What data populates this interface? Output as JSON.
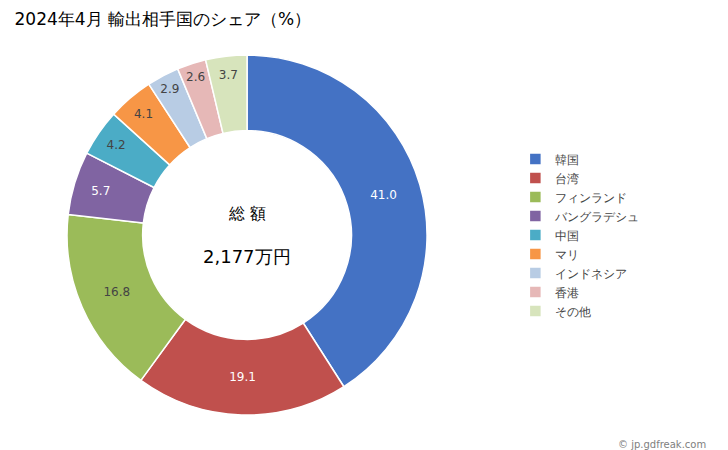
{
  "chart_data": {
    "type": "pie",
    "title": "2024年4月 輸出相手国のシェア（%）",
    "categories": [
      "韓国",
      "台湾",
      "フィンランド",
      "バングラデシュ",
      "中国",
      "マリ",
      "インドネシア",
      "香港",
      "その他"
    ],
    "values": [
      41.0,
      19.1,
      16.8,
      5.7,
      4.2,
      4.1,
      2.9,
      2.6,
      3.7
    ],
    "value_labels": [
      "41.0",
      "19.1",
      "16.8",
      "5.7",
      "4.2",
      "4.1",
      "2.9",
      "2.6",
      "3.7"
    ],
    "colors": [
      "#4472C4",
      "#C0504D",
      "#9BBB59",
      "#8064A2",
      "#4BACC6",
      "#F79646",
      "#B8CCE4",
      "#E6B8B7",
      "#D7E4BC"
    ],
    "data_labels": true,
    "legend": "right",
    "annotations": [
      "総 額",
      "2,177万円",
      "© jp.gdfreak.com"
    ]
  }
}
